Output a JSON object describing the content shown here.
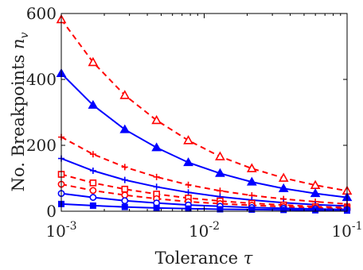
{
  "chart_data": {
    "type": "line",
    "xlabel": "Tolerance τ",
    "ylabel": "No. Breakpoints n_v",
    "xscale": "log",
    "xlim": [
      0.001,
      0.1
    ],
    "ylim": [
      0,
      600
    ],
    "grid": false,
    "x": [
      0.001,
      0.0016681,
      0.0027826,
      0.0046416,
      0.0077426,
      0.012915,
      0.021544,
      0.035938,
      0.059948,
      0.1
    ],
    "xticks": [
      {
        "value": 0.001,
        "base": "10",
        "exp": "-3"
      },
      {
        "value": 0.01,
        "base": "10",
        "exp": "-2"
      },
      {
        "value": 0.1,
        "base": "10",
        "exp": "-1"
      }
    ],
    "yticks": [
      {
        "value": 0,
        "label": "0"
      },
      {
        "value": 200,
        "label": "200"
      },
      {
        "value": 400,
        "label": "400"
      },
      {
        "value": 600,
        "label": "600"
      }
    ],
    "series": [
      {
        "color": "#ff0000",
        "dash": "dashed",
        "marker": "triangle-open",
        "values": [
          582,
          452,
          352,
          276,
          215,
          166,
          130,
          101,
          79,
          62
        ]
      },
      {
        "color": "#0000ff",
        "dash": "solid",
        "marker": "triangle",
        "values": [
          418,
          322,
          248,
          193,
          148,
          115,
          89,
          69,
          54,
          42
        ]
      },
      {
        "color": "#ff0000",
        "dash": "dashed",
        "marker": "plus",
        "values": [
          225,
          173,
          134,
          104,
          80,
          62,
          48,
          37,
          29,
          22
        ]
      },
      {
        "color": "#0000ff",
        "dash": "solid",
        "marker": "plus",
        "values": [
          160,
          123,
          95,
          74,
          57,
          44,
          34,
          26,
          20,
          16
        ]
      },
      {
        "color": "#ff0000",
        "dash": "dashed",
        "marker": "square-open",
        "values": [
          112,
          86,
          67,
          52,
          40,
          31,
          24,
          19,
          14,
          11
        ]
      },
      {
        "color": "#ff0000",
        "dash": "dashed",
        "marker": "circle-open",
        "values": [
          82,
          63,
          49,
          38,
          29,
          23,
          18,
          14,
          10,
          8
        ]
      },
      {
        "color": "#0000ff",
        "dash": "solid",
        "marker": "circle-open",
        "values": [
          54,
          42,
          32,
          25,
          19,
          15,
          11,
          9,
          7,
          5
        ]
      },
      {
        "color": "#0000ff",
        "dash": "solid",
        "marker": "square",
        "values": [
          22,
          17,
          13,
          10,
          8,
          6,
          5,
          4,
          3,
          2
        ]
      }
    ]
  }
}
